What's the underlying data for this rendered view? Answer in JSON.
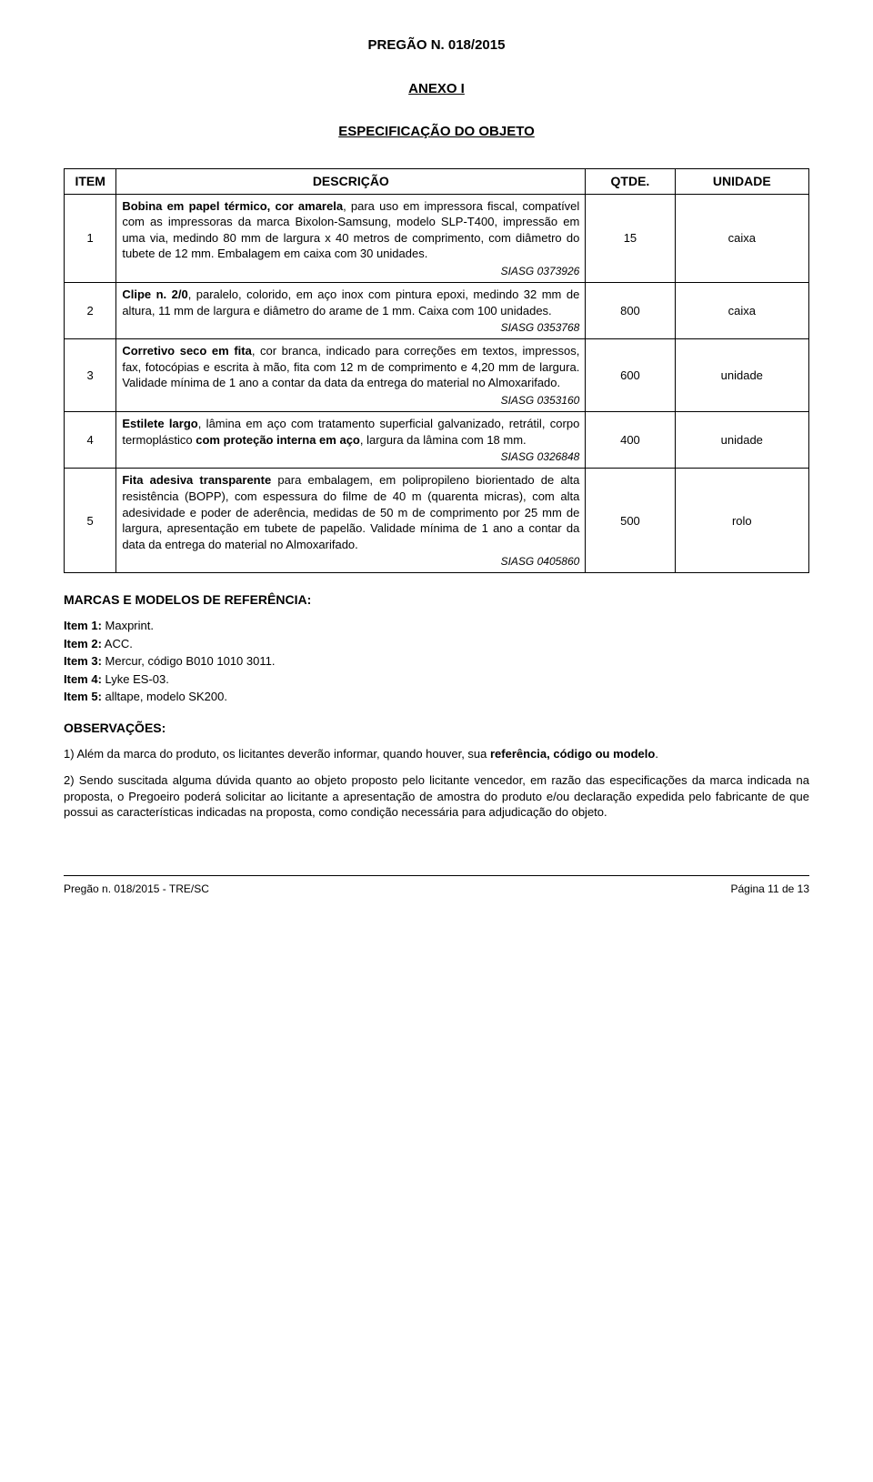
{
  "header": {
    "title": "PREGÃO N. 018/2015",
    "annex": "ANEXO I",
    "spec": "ESPECIFICAÇÃO DO OBJETO"
  },
  "table": {
    "columns": {
      "item": "ITEM",
      "desc": "DESCRIÇÃO",
      "qty": "QTDE.",
      "unit": "UNIDADE"
    },
    "rows": [
      {
        "n": "1",
        "lead": "Bobina em papel térmico, cor amarela",
        "rest": ", para uso em impressora fiscal, compatível com as impressoras da marca Bixolon-Samsung, modelo SLP-T400, impressão em uma via, medindo 80 mm de largura x 40 metros de comprimento, com diâmetro do tubete de 12 mm. Embalagem em caixa com 30 unidades.",
        "siasg": "SIASG 0373926",
        "qty": "15",
        "unit": "caixa"
      },
      {
        "n": "2",
        "lead": "Clipe n. 2/0",
        "rest": ", paralelo, colorido, em aço inox com pintura epoxi, medindo 32 mm de altura, 11 mm de largura e diâmetro do arame de 1 mm. Caixa com 100 unidades.",
        "siasg": "SIASG 0353768",
        "qty": "800",
        "unit": "caixa"
      },
      {
        "n": "3",
        "lead": "Corretivo seco em fita",
        "rest": ", cor branca, indicado para correções em textos, impressos, fax, fotocópias e escrita à mão, fita com 12 m de comprimento e 4,20 mm de largura. Validade mínima de 1 ano a contar da data da entrega do material no Almoxarifado.",
        "siasg": "SIASG 0353160",
        "qty": "600",
        "unit": "unidade"
      },
      {
        "n": "4",
        "lead": "Estilete largo",
        "rest_a": ", lâmina em aço com tratamento superficial galvanizado, retrátil, corpo termoplástico ",
        "bold_b": "com proteção interna em aço",
        "rest_c": ", largura da lâmina com 18 mm.",
        "siasg": "SIASG 0326848",
        "qty": "400",
        "unit": "unidade"
      },
      {
        "n": "5",
        "lead": "Fita adesiva transparente",
        "rest": " para embalagem, em polipropileno biorientado de alta resistência (BOPP), com espessura do filme de 40 m (quarenta micras), com alta adesividade e poder de aderência, medidas de 50 m de comprimento por 25 mm de largura, apresentação em tubete de papelão. Validade mínima de 1 ano a contar da data da entrega do material no Almoxarifado.",
        "siasg": "SIASG 0405860",
        "qty": "500",
        "unit": "rolo"
      }
    ]
  },
  "refs": {
    "title": "MARCAS E MODELOS DE REFERÊNCIA:",
    "items": [
      {
        "label": "Item 1:",
        "text": " Maxprint."
      },
      {
        "label": "Item 2:",
        "text": " ACC."
      },
      {
        "label": "Item 3:",
        "text": " Mercur, código B010 1010 3011."
      },
      {
        "label": "Item 4:",
        "text": " Lyke ES-03."
      },
      {
        "label": "Item 5:",
        "text": " alltape, modelo SK200."
      }
    ]
  },
  "obs": {
    "title": "OBSERVAÇÕES:",
    "p1_a": "1) Além da marca do produto, os licitantes deverão informar, quando houver, sua ",
    "p1_b": "referência, código ou modelo",
    "p1_c": ".",
    "p2": "2) Sendo suscitada alguma dúvida quanto ao objeto proposto pelo licitante vencedor, em razão das especificações da marca indicada na proposta, o Pregoeiro poderá solicitar ao licitante a apresentação de amostra do produto e/ou declaração expedida pelo fabricante de que possui as características indicadas na proposta, como condição necessária para adjudicação do objeto."
  },
  "footer": {
    "left": "Pregão n. 018/2015 - TRE/SC",
    "right": "Página 11 de 13"
  }
}
